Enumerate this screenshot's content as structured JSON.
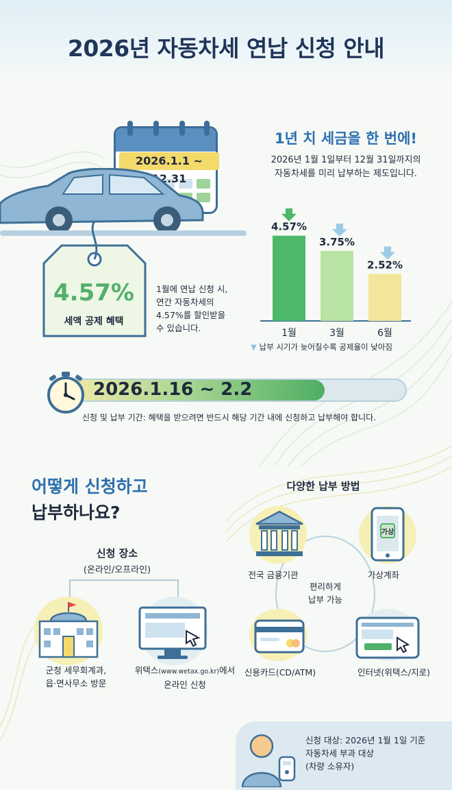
{
  "header": {
    "title": "2026년 자동차세 연납 신청 안내"
  },
  "calendar": {
    "date_range": "2026.1.1 ~ 12.31"
  },
  "tag": {
    "percent": "4.57%",
    "label": "세액 공제 혜택"
  },
  "tag_description": [
    "1월에 연납 신청 시,",
    "연간 자동차세의",
    "4.57%를 할인받을",
    "수 있습니다."
  ],
  "headline": "1년 치 세금을 한 번에!",
  "subtitle": [
    "2026년 1월 1일부터 12월 31일까지의",
    "자동차세를 미리 납부하는 제도입니다."
  ],
  "chart_data": {
    "type": "bar",
    "categories": [
      "1월",
      "3월",
      "6월"
    ],
    "values": [
      4.57,
      3.75,
      2.52
    ],
    "data_labels": [
      "4.57%",
      "3.75%",
      "2.52%"
    ],
    "colors": [
      "#4cb868",
      "#b9e3a2",
      "#f3e69a"
    ],
    "ylim": [
      0,
      5
    ],
    "grid": false,
    "note": "납부 시기가 늦어질수록 공제율이 낮아짐"
  },
  "timer": {
    "date_range": "2026.1.16 ~ 2.2",
    "fill_fraction": 0.76,
    "note": "신청 및 납부 기간: 혜택을 받으려면 반드시 해당 기간 내에 신청하고 납부해야 합니다."
  },
  "how": {
    "line1": "어떻게 신청하고",
    "line2": "납부하나요?"
  },
  "place": {
    "title": "신청 장소",
    "subtitle": "(온라인/오프라인)",
    "office_line1": "군청 세무회계과,",
    "office_line2": "읍·면사무소 방문",
    "wetax_prefix": "위택스",
    "wetax_url": "(www.wetax.go.kr)",
    "wetax_suffix": "에서",
    "wetax_line2": "온라인 신청"
  },
  "payment": {
    "title": "다양한 납부 방법",
    "bank": "전국 금융기관",
    "virtual_account": "가상계좌",
    "virtual_badge": "가상",
    "center_line1": "편리하게",
    "center_line2": "납부 가능",
    "card": "신용카드(CD/ATM)",
    "internet": "인터넷(위택스/지로)"
  },
  "target": {
    "line1": "신청 대상: 2026년 1월 1일 기준",
    "line2": "자동차세 부과 대상",
    "line3": "(차량 소유자)"
  },
  "colors": {
    "title": "#1f3559",
    "accent_blue": "#2d6fb0",
    "accent_green": "#52b06b"
  }
}
